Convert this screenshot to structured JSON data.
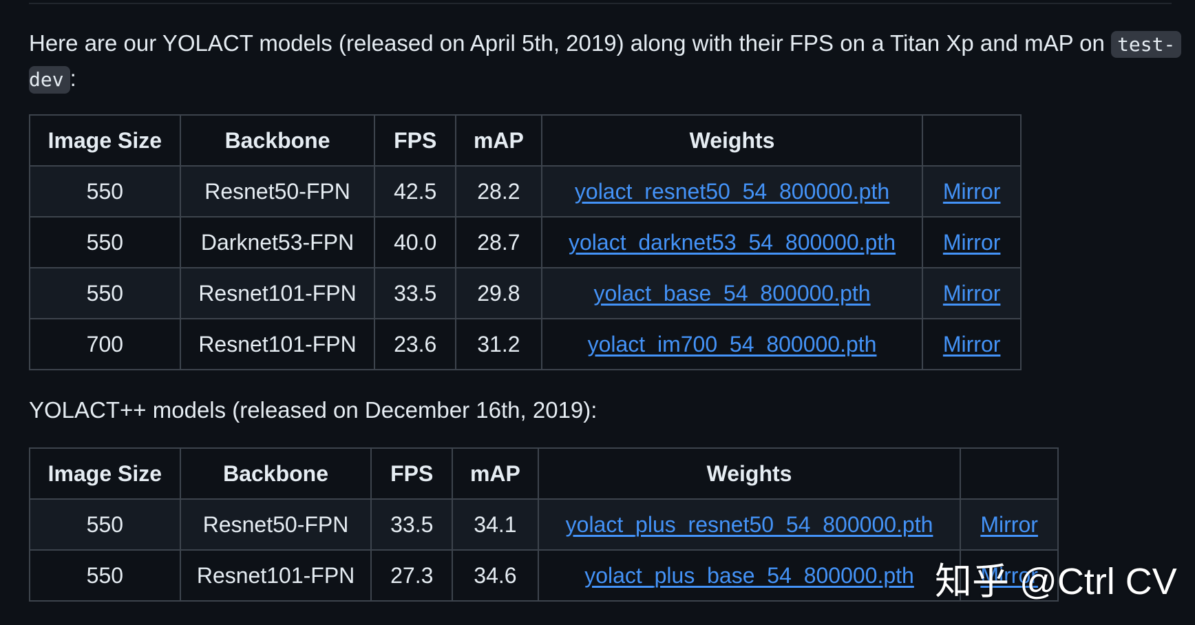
{
  "intro": {
    "text": "Here are our YOLACT models (released on April 5th, 2019) along with their FPS on a Titan Xp and mAP on",
    "code_part1": "test-",
    "code_part2": "dev",
    "trailing": ":"
  },
  "table1": {
    "headers": [
      "Image Size",
      "Backbone",
      "FPS",
      "mAP",
      "Weights",
      ""
    ],
    "rows": [
      {
        "size": "550",
        "backbone": "Resnet50-FPN",
        "fps": "42.5",
        "map": "28.2",
        "weights": "yolact_resnet50_54_800000.pth",
        "mirror": "Mirror"
      },
      {
        "size": "550",
        "backbone": "Darknet53-FPN",
        "fps": "40.0",
        "map": "28.7",
        "weights": "yolact_darknet53_54_800000.pth",
        "mirror": "Mirror"
      },
      {
        "size": "550",
        "backbone": "Resnet101-FPN",
        "fps": "33.5",
        "map": "29.8",
        "weights": "yolact_base_54_800000.pth",
        "mirror": "Mirror"
      },
      {
        "size": "700",
        "backbone": "Resnet101-FPN",
        "fps": "23.6",
        "map": "31.2",
        "weights": "yolact_im700_54_800000.pth",
        "mirror": "Mirror"
      }
    ]
  },
  "yolactpp_intro": "YOLACT++ models (released on December 16th, 2019):",
  "table2": {
    "headers": [
      "Image Size",
      "Backbone",
      "FPS",
      "mAP",
      "Weights",
      ""
    ],
    "rows": [
      {
        "size": "550",
        "backbone": "Resnet50-FPN",
        "fps": "33.5",
        "map": "34.1",
        "weights": "yolact_plus_resnet50_54_800000.pth",
        "mirror": "Mirror"
      },
      {
        "size": "550",
        "backbone": "Resnet101-FPN",
        "fps": "27.3",
        "map": "34.6",
        "weights": "yolact_plus_base_54_800000.pth",
        "mirror": "Mirror"
      }
    ]
  },
  "watermark": "知乎 @Ctrl CV",
  "colors": {
    "background": "#0d1117",
    "link": "#4493f8",
    "border": "#3d444d",
    "row_alt": "#151b23"
  }
}
